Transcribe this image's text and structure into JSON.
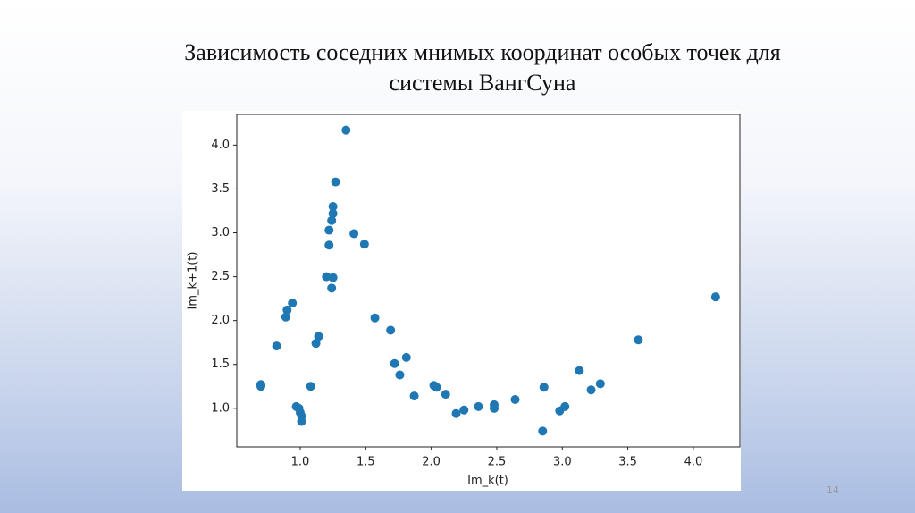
{
  "slide": {
    "title": [
      "Зависимость соседних мнимых координат особых точек для",
      "системы ВангСуна"
    ],
    "page_number": "14"
  },
  "chart_data": {
    "type": "scatter",
    "xlabel": "Im_k(t)",
    "ylabel": "Im_k+1(t)",
    "color": "#1f77b4",
    "x": [
      0.7,
      0.7,
      0.82,
      0.89,
      0.9,
      0.94,
      0.97,
      0.99,
      1.0,
      1.01,
      1.01,
      1.08,
      1.12,
      1.14,
      1.2,
      1.22,
      1.22,
      1.24,
      1.25,
      1.25,
      1.24,
      1.25,
      1.27,
      1.35,
      1.41,
      1.49,
      1.57,
      1.69,
      1.72,
      1.76,
      1.81,
      1.87,
      2.02,
      2.04,
      2.11,
      2.19,
      2.25,
      2.36,
      2.48,
      2.48,
      2.64,
      2.85,
      2.86,
      2.98,
      3.02,
      3.13,
      3.22,
      3.29,
      3.58,
      4.17
    ],
    "values": [
      1.25,
      1.27,
      1.71,
      2.04,
      2.12,
      2.2,
      1.02,
      1.0,
      0.95,
      0.91,
      0.85,
      1.25,
      1.74,
      1.82,
      2.5,
      2.86,
      3.03,
      3.14,
      3.22,
      3.3,
      2.37,
      2.49,
      3.58,
      4.17,
      2.99,
      2.87,
      2.03,
      1.89,
      1.51,
      1.38,
      1.58,
      1.14,
      1.26,
      1.24,
      1.16,
      0.94,
      0.98,
      1.02,
      1.04,
      1.0,
      1.1,
      0.74,
      1.24,
      0.97,
      1.02,
      1.43,
      1.21,
      1.28,
      1.78,
      2.27
    ],
    "xlim": [
      0.516,
      4.355
    ],
    "ylim": [
      0.56,
      4.35
    ],
    "xticks": [
      {
        "value": 1,
        "label": "1.0"
      },
      {
        "value": 1.5,
        "label": "1.5"
      },
      {
        "value": 2,
        "label": "2.0"
      },
      {
        "value": 2.5,
        "label": "2.5"
      },
      {
        "value": 3,
        "label": "3.0"
      },
      {
        "value": 3.5,
        "label": "3.5"
      },
      {
        "value": 4,
        "label": "4.0"
      }
    ],
    "yticks": [
      {
        "value": 1,
        "label": "1.0"
      },
      {
        "value": 1.5,
        "label": "1.5"
      },
      {
        "value": 2,
        "label": "2.0"
      },
      {
        "value": 2.5,
        "label": "2.5"
      },
      {
        "value": 3,
        "label": "3.0"
      },
      {
        "value": 3.5,
        "label": "3.5"
      },
      {
        "value": 4,
        "label": "4.0"
      }
    ]
  }
}
